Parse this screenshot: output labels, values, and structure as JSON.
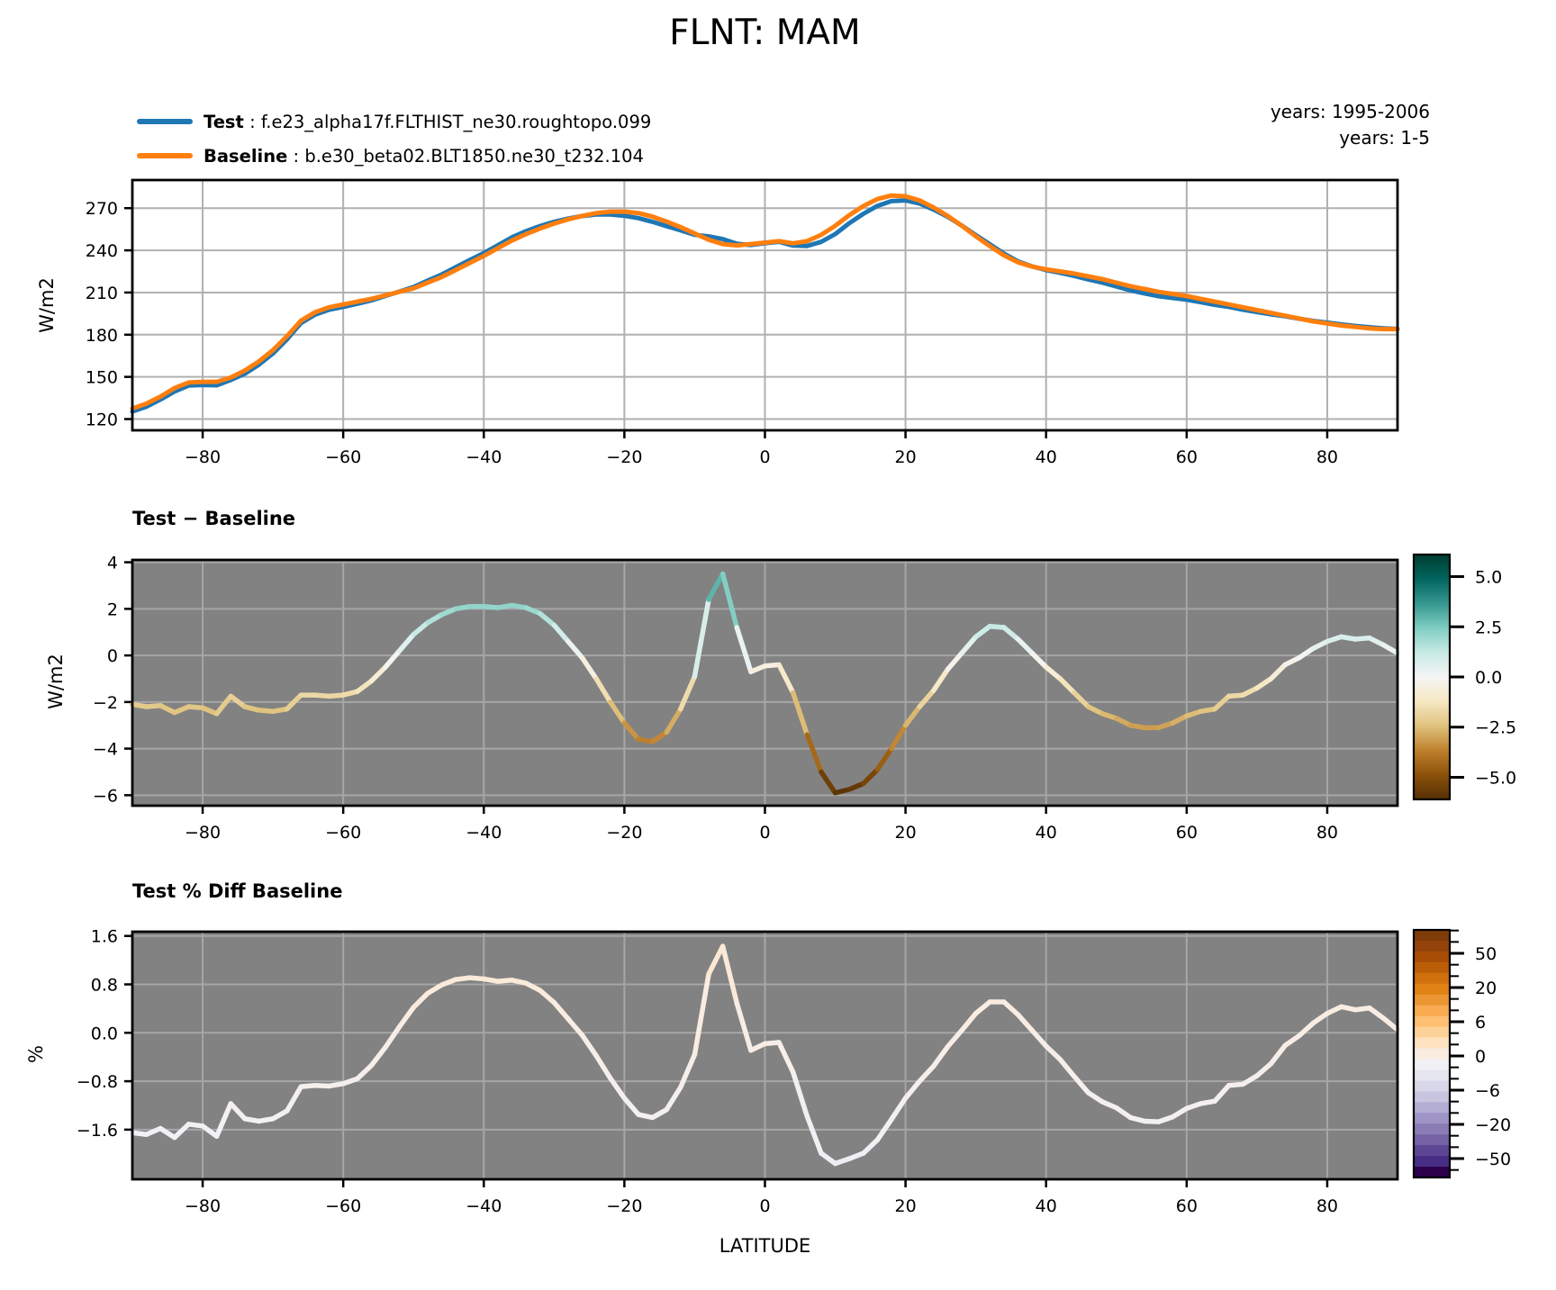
{
  "title": "FLNT: MAM",
  "legend": {
    "sep": " : ",
    "test_label": "Test",
    "test_run": "f.e23_alpha17f.FLTHIST_ne30.roughtopo.099",
    "test_color": "#1f77b4",
    "baseline_label": "Baseline",
    "baseline_run": "b.e30_beta02.BLT1850.ne30_t232.104",
    "baseline_color": "#ff7f0e"
  },
  "annotations": {
    "years_test": "years: 1995-2006",
    "years_baseline": "years: 1-5"
  },
  "panel_titles": {
    "diff": "Test − Baseline",
    "pct": "Test % Diff Baseline"
  },
  "axes": {
    "xlabel": "LATITUDE",
    "p1_ylabel": "W/m2",
    "p2_ylabel": "W/m2",
    "p3_ylabel": "%"
  },
  "chart_data": [
    {
      "type": "line",
      "title": "FLNT: MAM",
      "ylabel": "W/m2",
      "xlabel": "",
      "xlim": [
        -90,
        90
      ],
      "ylim": [
        112,
        290
      ],
      "grid": true,
      "grid_color": "#b0b0b0",
      "background": "#ffffff",
      "legend_position": "upper-left-above-axes",
      "xticks": [
        -80,
        -60,
        -40,
        -20,
        0,
        20,
        40,
        60,
        80
      ],
      "xticklabels": [
        "−80",
        "−60",
        "−40",
        "−20",
        "0",
        "20",
        "40",
        "60",
        "80"
      ],
      "yticks": [
        120,
        150,
        180,
        210,
        240,
        270
      ],
      "yticklabels": [
        "120",
        "150",
        "180",
        "210",
        "240",
        "270"
      ],
      "x": [
        -90,
        -88,
        -86,
        -84,
        -82,
        -80,
        -78,
        -76,
        -74,
        -72,
        -70,
        -68,
        -66,
        -64,
        -62,
        -60,
        -58,
        -56,
        -54,
        -52,
        -50,
        -48,
        -46,
        -44,
        -42,
        -40,
        -38,
        -36,
        -34,
        -32,
        -30,
        -28,
        -26,
        -24,
        -22,
        -20,
        -18,
        -16,
        -14,
        -12,
        -10,
        -8,
        -6,
        -4,
        -2,
        0,
        2,
        4,
        6,
        8,
        10,
        12,
        14,
        16,
        18,
        20,
        22,
        24,
        26,
        28,
        30,
        32,
        34,
        36,
        38,
        40,
        42,
        44,
        46,
        48,
        50,
        52,
        54,
        56,
        58,
        60,
        62,
        64,
        66,
        68,
        70,
        72,
        74,
        76,
        78,
        80,
        82,
        84,
        86,
        88,
        90
      ],
      "series": [
        {
          "name": "Test",
          "color": "#1f77b4",
          "values": [
            125.4,
            128.8,
            133.9,
            139.6,
            143.8,
            144.3,
            144.0,
            147.8,
            152.3,
            158.7,
            166.6,
            176.7,
            188.3,
            194.3,
            197.8,
            199.8,
            202.0,
            204.4,
            207.5,
            210.7,
            213.9,
            218.4,
            222.8,
            228.0,
            233.1,
            238.1,
            243.6,
            249.2,
            253.6,
            257.3,
            260.3,
            262.6,
            264.4,
            265.5,
            265.5,
            264.6,
            262.9,
            260.3,
            257.2,
            254.2,
            251.1,
            249.9,
            248.0,
            244.7,
            243.8,
            245.1,
            246.1,
            243.4,
            243.1,
            246.0,
            251.6,
            259.3,
            266.0,
            271.6,
            275.0,
            275.5,
            273.3,
            269.0,
            263.9,
            257.6,
            250.8,
            244.3,
            237.7,
            232.2,
            228.6,
            226.0,
            224.0,
            221.9,
            219.3,
            217.0,
            214.3,
            211.5,
            209.4,
            207.4,
            206.1,
            204.9,
            203.1,
            201.2,
            199.8,
            197.8,
            196.1,
            194.5,
            193.1,
            191.4,
            189.8,
            188.6,
            187.3,
            186.2,
            185.3,
            184.5,
            184.1
          ]
        },
        {
          "name": "Baseline",
          "color": "#ff7f0e",
          "values": [
            127.5,
            131.0,
            136.0,
            142.0,
            146.0,
            146.5,
            146.5,
            149.5,
            154.5,
            161.0,
            169.0,
            179.0,
            190.0,
            196.0,
            199.5,
            201.5,
            203.5,
            205.5,
            208.0,
            210.5,
            213.0,
            217.0,
            221.0,
            226.0,
            231.0,
            236.0,
            241.5,
            247.0,
            251.5,
            255.5,
            259.0,
            262.0,
            264.5,
            266.5,
            267.5,
            267.5,
            266.5,
            264.0,
            260.5,
            256.5,
            252.0,
            247.5,
            244.5,
            243.5,
            244.5,
            245.5,
            246.5,
            245.0,
            246.5,
            251.0,
            257.5,
            265.0,
            271.5,
            276.5,
            279.0,
            278.5,
            275.5,
            270.5,
            264.5,
            257.5,
            250.0,
            243.0,
            236.5,
            231.5,
            228.5,
            226.5,
            225.0,
            223.5,
            221.5,
            219.5,
            217.0,
            214.5,
            212.5,
            210.5,
            209.0,
            207.5,
            205.5,
            203.5,
            201.5,
            199.5,
            197.5,
            195.5,
            193.5,
            191.5,
            189.5,
            188.0,
            186.5,
            185.5,
            184.5,
            184.0,
            184.0
          ]
        }
      ]
    },
    {
      "type": "line",
      "subtype": "colored-by-value",
      "title": "Test − Baseline",
      "ylabel": "W/m2",
      "xlim": [
        -90,
        90
      ],
      "ylim": [
        -6.45,
        4.1
      ],
      "grid": true,
      "grid_color": "#a6a6a6",
      "background": "#828282",
      "xticks": [
        -80,
        -60,
        -40,
        -20,
        0,
        20,
        40,
        60,
        80
      ],
      "xticklabels": [
        "−80",
        "−60",
        "−40",
        "−20",
        "0",
        "20",
        "40",
        "60",
        "80"
      ],
      "yticks": [
        4,
        2,
        0,
        -2,
        -4,
        -6
      ],
      "yticklabels": [
        "4",
        "2",
        "0",
        "−2",
        "−4",
        "−6"
      ],
      "x": [
        -90,
        -88,
        -86,
        -84,
        -82,
        -80,
        -78,
        -76,
        -74,
        -72,
        -70,
        -68,
        -66,
        -64,
        -62,
        -60,
        -58,
        -56,
        -54,
        -52,
        -50,
        -48,
        -46,
        -44,
        -42,
        -40,
        -38,
        -36,
        -34,
        -32,
        -30,
        -28,
        -26,
        -24,
        -22,
        -20,
        -18,
        -16,
        -14,
        -12,
        -10,
        -8,
        -6,
        -4,
        -2,
        0,
        2,
        4,
        6,
        8,
        10,
        12,
        14,
        16,
        18,
        20,
        22,
        24,
        26,
        28,
        30,
        32,
        34,
        36,
        38,
        40,
        42,
        44,
        46,
        48,
        50,
        52,
        54,
        56,
        58,
        60,
        62,
        64,
        66,
        68,
        70,
        72,
        74,
        76,
        78,
        80,
        82,
        84,
        86,
        88,
        90
      ],
      "values": [
        -2.1,
        -2.2,
        -2.15,
        -2.45,
        -2.2,
        -2.25,
        -2.5,
        -1.75,
        -2.2,
        -2.35,
        -2.4,
        -2.3,
        -1.7,
        -1.7,
        -1.75,
        -1.7,
        -1.55,
        -1.1,
        -0.5,
        0.2,
        0.9,
        1.4,
        1.75,
        2.0,
        2.1,
        2.1,
        2.05,
        2.15,
        2.05,
        1.8,
        1.3,
        0.6,
        -0.1,
        -1.0,
        -2.0,
        -2.9,
        -3.6,
        -3.7,
        -3.3,
        -2.3,
        -0.9,
        2.4,
        3.5,
        1.2,
        -0.7,
        -0.45,
        -0.4,
        -1.6,
        -3.4,
        -5.0,
        -5.9,
        -5.75,
        -5.5,
        -4.9,
        -4.0,
        -3.0,
        -2.2,
        -1.5,
        -0.6,
        0.1,
        0.8,
        1.25,
        1.2,
        0.7,
        0.1,
        -0.5,
        -1.0,
        -1.6,
        -2.2,
        -2.5,
        -2.7,
        -3.0,
        -3.1,
        -3.1,
        -2.9,
        -2.6,
        -2.4,
        -2.3,
        -1.75,
        -1.7,
        -1.4,
        -1.0,
        -0.4,
        -0.1,
        0.3,
        0.6,
        0.8,
        0.7,
        0.75,
        0.45,
        0.1
      ],
      "colormap": {
        "name": "BrBG",
        "vmin": -6,
        "vmax": 6,
        "stops": [
          [
            0,
            "#543005"
          ],
          [
            0.1,
            "#8c510a"
          ],
          [
            0.2,
            "#bf812d"
          ],
          [
            0.3,
            "#dfc27d"
          ],
          [
            0.4,
            "#f6e8c3"
          ],
          [
            0.5,
            "#f5f5f5"
          ],
          [
            0.6,
            "#c7eae5"
          ],
          [
            0.7,
            "#80cdc1"
          ],
          [
            0.8,
            "#35978f"
          ],
          [
            0.9,
            "#01665e"
          ],
          [
            1,
            "#003c30"
          ]
        ]
      },
      "colorbar": {
        "range_top_to_bottom": [
          6.1,
          -6.1
        ],
        "ticks": [
          5.0,
          2.5,
          0.0,
          -2.5,
          -5.0
        ],
        "ticklabels": [
          "5.0",
          "2.5",
          "0.0",
          "−2.5",
          "−5.0"
        ],
        "gradient_top_to_bottom": [
          "#003c30",
          "#01665e",
          "#35978f",
          "#80cdc1",
          "#c7eae5",
          "#f5f5f5",
          "#f6e8c3",
          "#dfc27d",
          "#bf812d",
          "#8c510a",
          "#543005"
        ]
      }
    },
    {
      "type": "line",
      "subtype": "colored-by-value",
      "title": "Test % Diff Baseline",
      "ylabel": "%",
      "xlabel": "LATITUDE",
      "xlim": [
        -90,
        90
      ],
      "ylim": [
        -2.42,
        1.67
      ],
      "grid": true,
      "grid_color": "#a6a6a6",
      "background": "#828282",
      "xticks": [
        -80,
        -60,
        -40,
        -20,
        0,
        20,
        40,
        60,
        80
      ],
      "xticklabels": [
        "−80",
        "−60",
        "−40",
        "−20",
        "0",
        "20",
        "40",
        "60",
        "80"
      ],
      "yticks": [
        1.6,
        0.8,
        0.0,
        -0.8,
        -1.6
      ],
      "yticklabels": [
        "1.6",
        "0.8",
        "0.0",
        "−0.8",
        "−1.6"
      ],
      "x": [
        -90,
        -88,
        -86,
        -84,
        -82,
        -80,
        -78,
        -76,
        -74,
        -72,
        -70,
        -68,
        -66,
        -64,
        -62,
        -60,
        -58,
        -56,
        -54,
        -52,
        -50,
        -48,
        -46,
        -44,
        -42,
        -40,
        -38,
        -36,
        -34,
        -32,
        -30,
        -28,
        -26,
        -24,
        -22,
        -20,
        -18,
        -16,
        -14,
        -12,
        -10,
        -8,
        -6,
        -4,
        -2,
        0,
        2,
        4,
        6,
        8,
        10,
        12,
        14,
        16,
        18,
        20,
        22,
        24,
        26,
        28,
        30,
        32,
        34,
        36,
        38,
        40,
        42,
        44,
        46,
        48,
        50,
        52,
        54,
        56,
        58,
        60,
        62,
        64,
        66,
        68,
        70,
        72,
        74,
        76,
        78,
        80,
        82,
        84,
        86,
        88,
        90
      ],
      "values": [
        -1.65,
        -1.68,
        -1.58,
        -1.73,
        -1.51,
        -1.54,
        -1.71,
        -1.17,
        -1.42,
        -1.46,
        -1.42,
        -1.29,
        -0.89,
        -0.87,
        -0.88,
        -0.84,
        -0.76,
        -0.54,
        -0.24,
        0.1,
        0.42,
        0.65,
        0.79,
        0.88,
        0.91,
        0.89,
        0.85,
        0.87,
        0.82,
        0.7,
        0.5,
        0.23,
        -0.04,
        -0.38,
        -0.75,
        -1.08,
        -1.35,
        -1.4,
        -1.27,
        -0.9,
        -0.36,
        0.97,
        1.43,
        0.49,
        -0.29,
        -0.18,
        -0.16,
        -0.65,
        -1.38,
        -1.99,
        -2.16,
        -2.08,
        -1.99,
        -1.77,
        -1.43,
        -1.08,
        -0.8,
        -0.55,
        -0.23,
        0.04,
        0.32,
        0.51,
        0.51,
        0.3,
        0.04,
        -0.22,
        -0.44,
        -0.72,
        -0.99,
        -1.14,
        -1.24,
        -1.4,
        -1.46,
        -1.47,
        -1.39,
        -1.25,
        -1.17,
        -1.13,
        -0.87,
        -0.85,
        -0.71,
        -0.51,
        -0.21,
        -0.05,
        0.16,
        0.32,
        0.43,
        0.38,
        0.41,
        0.24,
        0.05
      ],
      "colormap": {
        "name": "PuOr_r",
        "scale": "symlog",
        "center_t": 0.491,
        "slope_per_unit": 0.023
      },
      "colorbar": {
        "scale": "symlog",
        "ticks": [
          50,
          20,
          6,
          0,
          -6,
          -20,
          -50
        ],
        "ticklabels": [
          "50",
          "20",
          "6",
          "0",
          "−6",
          "−20",
          "−50"
        ],
        "band_colors_top_to_bottom": [
          "#7f3b08",
          "#93430a",
          "#a84d06",
          "#bc5e08",
          "#d0700e",
          "#e08214",
          "#ec9633",
          "#f8ab50",
          "#fdbf71",
          "#fdd299",
          "#fee3c0",
          "#f9ece1",
          "#f2f0f4",
          "#e6e6f1",
          "#d9d8ea",
          "#c8c5e0",
          "#b4add4",
          "#9f94c6",
          "#8a7cb5",
          "#7462a5",
          "#5d4795",
          "#472d84",
          "#2d004b"
        ]
      }
    }
  ]
}
